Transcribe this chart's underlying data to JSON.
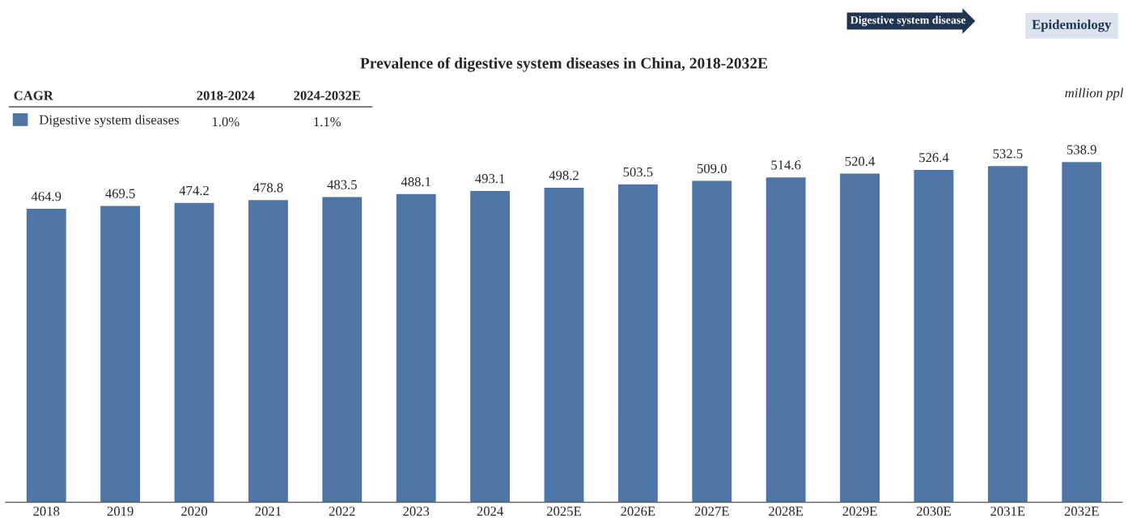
{
  "chart_data": {
    "type": "bar",
    "title": "Prevalence of digestive system diseases in China, 2018-2032E",
    "categories": [
      "2018",
      "2019",
      "2020",
      "2021",
      "2022",
      "2023",
      "2024",
      "2025E",
      "2026E",
      "2027E",
      "2028E",
      "2029E",
      "2030E",
      "2031E",
      "2032E"
    ],
    "series": [
      {
        "name": "Digestive system diseases",
        "color": "#4f74a6",
        "values": [
          464.9,
          469.5,
          474.2,
          478.8,
          483.5,
          488.1,
          493.1,
          498.2,
          503.5,
          509.0,
          514.6,
          520.4,
          526.4,
          532.5,
          538.9
        ],
        "value_labels": [
          "464.9",
          "469.5",
          "474.2",
          "478.8",
          "483.5",
          "488.1",
          "493.1",
          "498.2",
          "503.5",
          "509.0",
          "514.6",
          "520.4",
          "526.4",
          "532.5",
          "538.9"
        ]
      }
    ],
    "legend": "top left",
    "grid": false,
    "annotations": [
      "Digestive system disease",
      "Epidemiology",
      "million ppl",
      "CAGR",
      "2018-2024",
      "2024-2032E",
      "1.0%",
      "1.1%"
    ]
  }
}
